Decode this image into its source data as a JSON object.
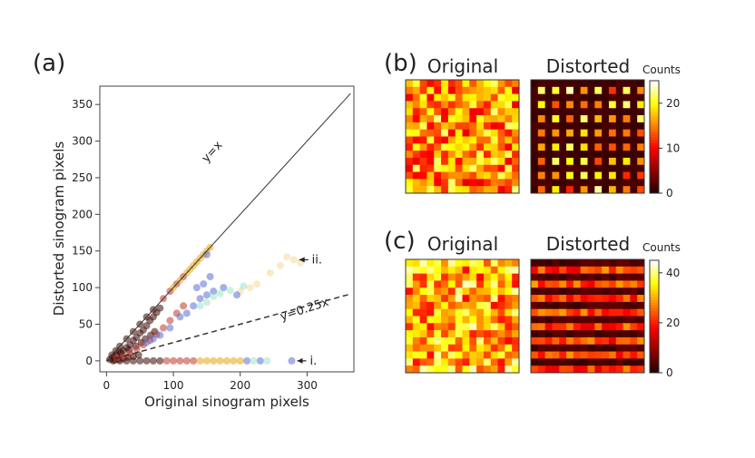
{
  "panels": {
    "a": "(a)",
    "b": "(b)",
    "c": "(c)"
  },
  "chart_data": [
    {
      "type": "scatter",
      "xlabel": "Original sinogram pixels",
      "ylabel": "Distorted sinogram pixels",
      "xlim": [
        -10,
        370
      ],
      "ylim": [
        -15,
        375
      ],
      "xticks": [
        0,
        100,
        200,
        300
      ],
      "yticks": [
        0,
        50,
        100,
        150,
        200,
        250,
        300,
        350
      ],
      "grid": false,
      "reference_lines": [
        {
          "label": "y=x",
          "slope": 1,
          "style": "solid",
          "x_end": 365
        },
        {
          "label": "y=0.25x",
          "slope": 0.25,
          "style": "dashed",
          "x_end": 365
        }
      ],
      "annotations": [
        {
          "label": "i.",
          "x": 277,
          "y": 0
        },
        {
          "label": "ii.",
          "x": 280,
          "y": 138
        }
      ],
      "series": [
        {
          "color": "#3b0a05",
          "points": [
            [
              5,
              2
            ],
            [
              10,
              5
            ],
            [
              15,
              8
            ],
            [
              20,
              12
            ],
            [
              25,
              14
            ],
            [
              30,
              18
            ],
            [
              35,
              22
            ],
            [
              40,
              28
            ],
            [
              45,
              32
            ],
            [
              50,
              38
            ],
            [
              55,
              42
            ],
            [
              60,
              48
            ],
            [
              65,
              55
            ],
            [
              70,
              60
            ],
            [
              75,
              66
            ],
            [
              80,
              72
            ],
            [
              12,
              1
            ],
            [
              18,
              2
            ],
            [
              25,
              3
            ],
            [
              32,
              5
            ],
            [
              40,
              6
            ],
            [
              48,
              8
            ],
            [
              20,
              20
            ],
            [
              30,
              30
            ],
            [
              40,
              40
            ],
            [
              50,
              50
            ],
            [
              60,
              60
            ],
            [
              70,
              70
            ],
            [
              8,
              8
            ],
            [
              14,
              14
            ],
            [
              22,
              10
            ],
            [
              34,
              15
            ],
            [
              44,
              20
            ],
            [
              52,
              25
            ],
            [
              58,
              30
            ],
            [
              66,
              35
            ],
            [
              72,
              40
            ],
            [
              10,
              0
            ],
            [
              20,
              0
            ],
            [
              30,
              0
            ],
            [
              40,
              0
            ],
            [
              50,
              0
            ],
            [
              60,
              0
            ],
            [
              70,
              0
            ],
            [
              80,
              0
            ]
          ]
        },
        {
          "color": "#c0392b",
          "points": [
            [
              15,
              4
            ],
            [
              25,
              6
            ],
            [
              35,
              10
            ],
            [
              45,
              16
            ],
            [
              55,
              22
            ],
            [
              65,
              28
            ],
            [
              75,
              36
            ],
            [
              85,
              45
            ],
            [
              95,
              55
            ],
            [
              105,
              65
            ],
            [
              115,
              75
            ],
            [
              85,
              85
            ],
            [
              95,
              95
            ],
            [
              105,
              105
            ],
            [
              115,
              115
            ],
            [
              90,
              0
            ],
            [
              100,
              0
            ],
            [
              110,
              0
            ],
            [
              120,
              0
            ],
            [
              130,
              0
            ]
          ]
        },
        {
          "color": "#e6a817",
          "points": [
            [
              100,
              100
            ],
            [
              110,
              110
            ],
            [
              120,
              120
            ],
            [
              130,
              130
            ],
            [
              140,
              140
            ],
            [
              150,
              150
            ],
            [
              155,
              155
            ],
            [
              145,
              145
            ],
            [
              135,
              135
            ],
            [
              125,
              125
            ],
            [
              140,
              0
            ],
            [
              150,
              0
            ],
            [
              160,
              0
            ],
            [
              170,
              0
            ],
            [
              180,
              0
            ],
            [
              190,
              0
            ],
            [
              200,
              0
            ]
          ]
        },
        {
          "color": "#f5d89a",
          "points": [
            [
              225,
              105
            ],
            [
              245,
              120
            ],
            [
              260,
              130
            ],
            [
              270,
              142
            ],
            [
              280,
              138
            ],
            [
              290,
              134
            ],
            [
              200,
              95
            ],
            [
              215,
              100
            ]
          ]
        },
        {
          "color": "#5b6fd6",
          "points": [
            [
              80,
              35
            ],
            [
              95,
              45
            ],
            [
              110,
              60
            ],
            [
              120,
              65
            ],
            [
              130,
              75
            ],
            [
              140,
              85
            ],
            [
              150,
              90
            ],
            [
              160,
              95
            ],
            [
              175,
              100
            ],
            [
              195,
              90
            ],
            [
              135,
              100
            ],
            [
              150,
              145
            ],
            [
              155,
              115
            ],
            [
              145,
              105
            ],
            [
              70,
              30
            ],
            [
              60,
              25
            ],
            [
              210,
              0
            ],
            [
              230,
              0
            ],
            [
              277,
              0
            ]
          ]
        },
        {
          "color": "#9ee3c8",
          "points": [
            [
              150,
              80
            ],
            [
              160,
              88
            ],
            [
              170,
              92
            ],
            [
              185,
              96
            ],
            [
              205,
              102
            ],
            [
              140,
              75
            ],
            [
              220,
              0
            ],
            [
              240,
              0
            ]
          ]
        }
      ]
    },
    {
      "type": "heatmap",
      "panel": "b",
      "titles": [
        "Original",
        "Distorted"
      ],
      "colorbar_label": "Counts",
      "colorbar_ticks": [
        0,
        10,
        20
      ],
      "vmax": 25,
      "grid_size": 16
    },
    {
      "type": "heatmap",
      "panel": "c",
      "titles": [
        "Original",
        "Distorted"
      ],
      "colorbar_label": "Counts",
      "colorbar_ticks": [
        0,
        20,
        40
      ],
      "vmax": 45,
      "grid_size": 16
    }
  ]
}
